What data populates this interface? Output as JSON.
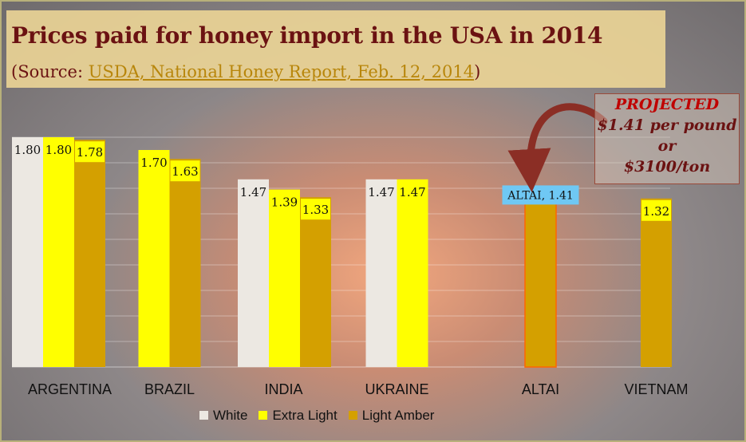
{
  "title": "Prices paid for honey import in the USA in 2014",
  "subtitle": {
    "prefix": "(Source: ",
    "link": "USDA, National Honey Report, Feb. 12, 2014",
    "suffix": ")"
  },
  "projection": {
    "line1": "PROJECTED",
    "line2": "$1.41 per pound",
    "line3": "or",
    "line4": "$3100/ton"
  },
  "colors": {
    "White": "#ece8e2",
    "Extra Light": "#ffff00",
    "Light Amber": "#d4a000"
  },
  "chart_data": {
    "type": "bar",
    "title": "Prices paid for honey import in the USA in 2014",
    "categories": [
      "ARGENTINA",
      "BRAZIL",
      "INDIA",
      "UKRAINE",
      "ALTAI",
      "VIETNAM"
    ],
    "series": [
      {
        "name": "White",
        "values": [
          1.8,
          null,
          1.47,
          1.47,
          null,
          null
        ]
      },
      {
        "name": "Extra Light",
        "values": [
          1.8,
          1.7,
          1.39,
          1.47,
          null,
          null
        ]
      },
      {
        "name": "Light Amber",
        "values": [
          1.78,
          1.63,
          1.33,
          null,
          1.41,
          1.32
        ]
      }
    ],
    "data_labels": [
      [
        "1.80",
        null,
        "1.47",
        "1.47",
        null,
        null
      ],
      [
        "1.80",
        "1.70",
        "1.39",
        "1.47",
        null,
        null
      ],
      [
        "1.78",
        "1.63",
        "1.33",
        null,
        "ALTAI, 1.41",
        "1.32"
      ]
    ],
    "ylim": [
      0,
      2
    ],
    "grid": true,
    "legend": "bottom"
  }
}
